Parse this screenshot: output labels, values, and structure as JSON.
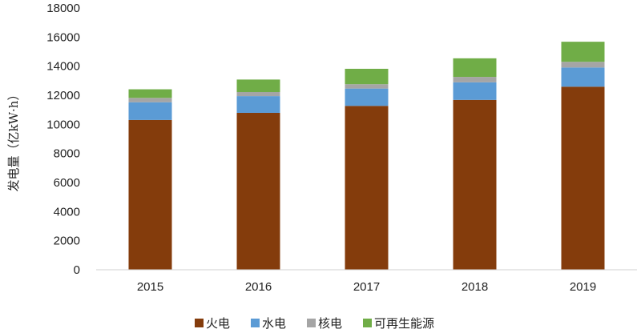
{
  "chart_data": {
    "type": "bar",
    "stacked": true,
    "title": "",
    "xlabel": "",
    "ylabel": "发电量（亿kW·h）",
    "ylim": [
      0,
      18000
    ],
    "yticks": [
      0,
      2000,
      4000,
      6000,
      8000,
      10000,
      12000,
      14000,
      16000,
      18000
    ],
    "categories": [
      "2015",
      "2016",
      "2017",
      "2018",
      "2019"
    ],
    "series": [
      {
        "name": "火电",
        "color": "#843C0C",
        "values": [
          10300,
          10790,
          11270,
          11680,
          12590
        ]
      },
      {
        "name": "水电",
        "color": "#5B9BD5",
        "values": [
          1220,
          1150,
          1190,
          1210,
          1320
        ]
      },
      {
        "name": "核电",
        "color": "#A5A5A5",
        "values": [
          300,
          280,
          300,
          370,
          390
        ]
      },
      {
        "name": "可再生能源",
        "color": "#70AD47",
        "values": [
          590,
          860,
          1060,
          1280,
          1380
        ]
      }
    ],
    "grid": false,
    "legend_position": "bottom"
  }
}
